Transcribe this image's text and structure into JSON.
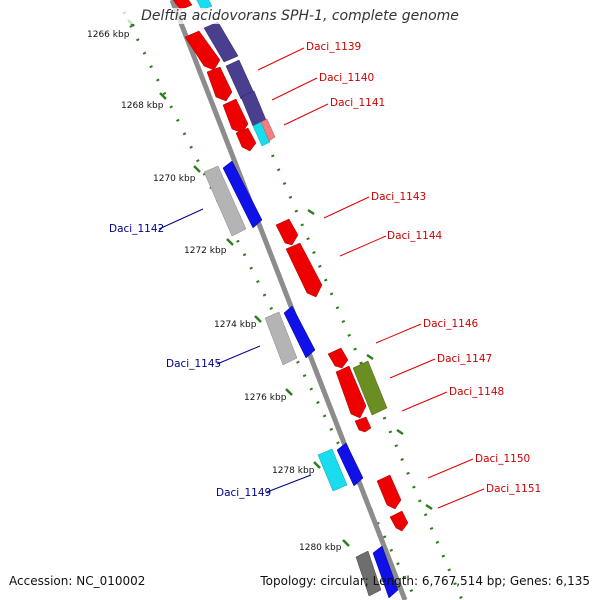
{
  "title": "Delftia acidovorans SPH-1, complete genome",
  "footer": {
    "accession": "Accession: NC_010002",
    "summary": "Topology: circular; Length: 6,767,514 bp; Genes: 6,135"
  },
  "colors": {
    "backbone": "#8c8c8c",
    "tick": "#2e7d1e",
    "red_gene": "#ee0000",
    "blue_gene": "#1010e8",
    "gray_gene": "#b4b4b4",
    "purple_gene": "#4a3f8e",
    "cyan_gene": "#19dcef",
    "olive_gene": "#6b8e23",
    "pink_gene": "#f08080",
    "red_label": "#cc0000",
    "blue_label": "#00008b"
  },
  "kbp_labels": [
    "1266 kbp",
    "1268 kbp",
    "1270 kbp",
    "1272 kbp",
    "1274 kbp",
    "1276 kbp",
    "1278 kbp",
    "1280 kbp"
  ],
  "gene_labels": {
    "daci_1139": "Daci_1139",
    "daci_1140": "Daci_1140",
    "daci_1141": "Daci_1141",
    "daci_1142": "Daci_1142",
    "daci_1143": "Daci_1143",
    "daci_1144": "Daci_1144",
    "daci_1145": "Daci_1145",
    "daci_1146": "Daci_1146",
    "daci_1147": "Daci_1147",
    "daci_1148": "Daci_1148",
    "daci_1149": "Daci_1149",
    "daci_1150": "Daci_1150",
    "daci_1151": "Daci_1151"
  }
}
